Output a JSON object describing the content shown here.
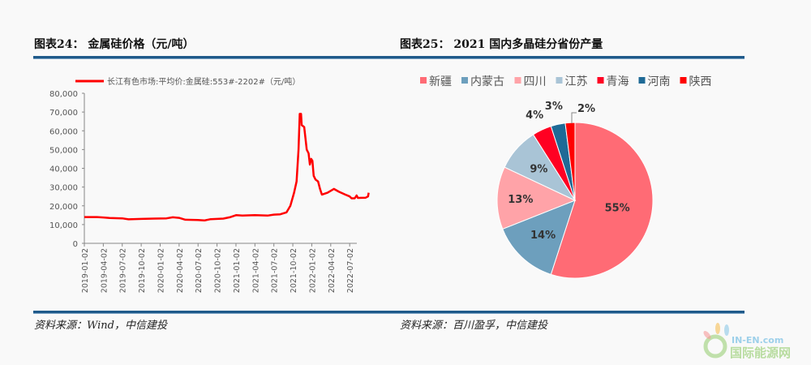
{
  "titles": {
    "left": "图表24：  金属硅价格（元/吨）",
    "right": "图表25：  2021 国内多晶硅分省份产量"
  },
  "sources": {
    "left": "资料来源：Wind，中信建投",
    "right": "资料来源：百川盈孚，中信建投"
  },
  "watermark": {
    "brand": "IN-EN.com",
    "name": "国际能源网"
  },
  "chart_data": [
    {
      "type": "line",
      "title": "金属硅价格（元/吨）",
      "legend": "长江有色市场:平均价:金属硅:553#-2202#（元/吨）",
      "legend_position": "top",
      "ylim": [
        0,
        80000
      ],
      "yticks": [
        "0",
        "10,000",
        "20,000",
        "30,000",
        "40,000",
        "50,000",
        "60,000",
        "70,000",
        "80,000"
      ],
      "xticks": [
        "2019-01-02",
        "2019-04-02",
        "2019-07-02",
        "2019-10-02",
        "2020-01-02",
        "2020-04-02",
        "2020-07-02",
        "2020-10-02",
        "2021-01-02",
        "2021-04-02",
        "2021-07-02",
        "2021-10-02",
        "2022-01-02",
        "2022-04-02",
        "2022-07-02"
      ],
      "x_unit": "months since 2019-01",
      "color": "#ff0000",
      "series": [
        {
          "name": "长江有色市场:平均价:金属硅:553#-2202#",
          "points": [
            [
              0,
              14000
            ],
            [
              2,
              14000
            ],
            [
              3,
              13800
            ],
            [
              4,
              13500
            ],
            [
              6,
              13300
            ],
            [
              7,
              12800
            ],
            [
              9,
              13000
            ],
            [
              11,
              13200
            ],
            [
              13,
              13300
            ],
            [
              14,
              13900
            ],
            [
              15,
              13600
            ],
            [
              16,
              12600
            ],
            [
              18,
              12400
            ],
            [
              19,
              12200
            ],
            [
              20,
              12900
            ],
            [
              22,
              13200
            ],
            [
              23,
              13900
            ],
            [
              24,
              15000
            ],
            [
              25,
              14800
            ],
            [
              27,
              15000
            ],
            [
              29,
              14800
            ],
            [
              30,
              15300
            ],
            [
              31,
              15500
            ],
            [
              32,
              16500
            ],
            [
              32.6,
              20000
            ],
            [
              33.2,
              27000
            ],
            [
              33.6,
              33000
            ],
            [
              33.9,
              50000
            ],
            [
              34.1,
              69000
            ],
            [
              34.3,
              69000
            ],
            [
              34.4,
              63000
            ],
            [
              34.8,
              62000
            ],
            [
              35.2,
              50000
            ],
            [
              35.5,
              48000
            ],
            [
              35.7,
              42000
            ],
            [
              35.9,
              45000
            ],
            [
              36.1,
              44000
            ],
            [
              36.3,
              36000
            ],
            [
              36.6,
              34000
            ],
            [
              37,
              33000
            ],
            [
              37.3,
              29000
            ],
            [
              37.6,
              26000
            ],
            [
              38.5,
              27000
            ],
            [
              39.5,
              29000
            ],
            [
              40.3,
              27500
            ],
            [
              41.3,
              26000
            ],
            [
              42,
              25000
            ],
            [
              42.3,
              24000
            ],
            [
              42.8,
              24000
            ],
            [
              43.1,
              25500
            ],
            [
              43.3,
              24200
            ],
            [
              44.5,
              24300
            ],
            [
              44.9,
              25000
            ],
            [
              45,
              27000
            ]
          ]
        }
      ]
    },
    {
      "type": "pie",
      "title": "2021 国内多晶硅分省份产量",
      "legend_position": "top",
      "slices": [
        {
          "label": "新疆",
          "value": 55,
          "text": "55%",
          "color": "#ff6b75"
        },
        {
          "label": "内蒙古",
          "value": 14,
          "text": "14%",
          "color": "#6d9fbd"
        },
        {
          "label": "四川",
          "value": 13,
          "text": "13%",
          "color": "#ffa3a8"
        },
        {
          "label": "江苏",
          "value": 9,
          "text": "9%",
          "color": "#a9c4d6"
        },
        {
          "label": "青海",
          "value": 4,
          "text": "4%",
          "color": "#ff0022"
        },
        {
          "label": "河南",
          "value": 3,
          "text": "3%",
          "color": "#1f6a96"
        },
        {
          "label": "陕西",
          "value": 2,
          "text": "2%",
          "color": "#ff0000"
        }
      ]
    }
  ]
}
